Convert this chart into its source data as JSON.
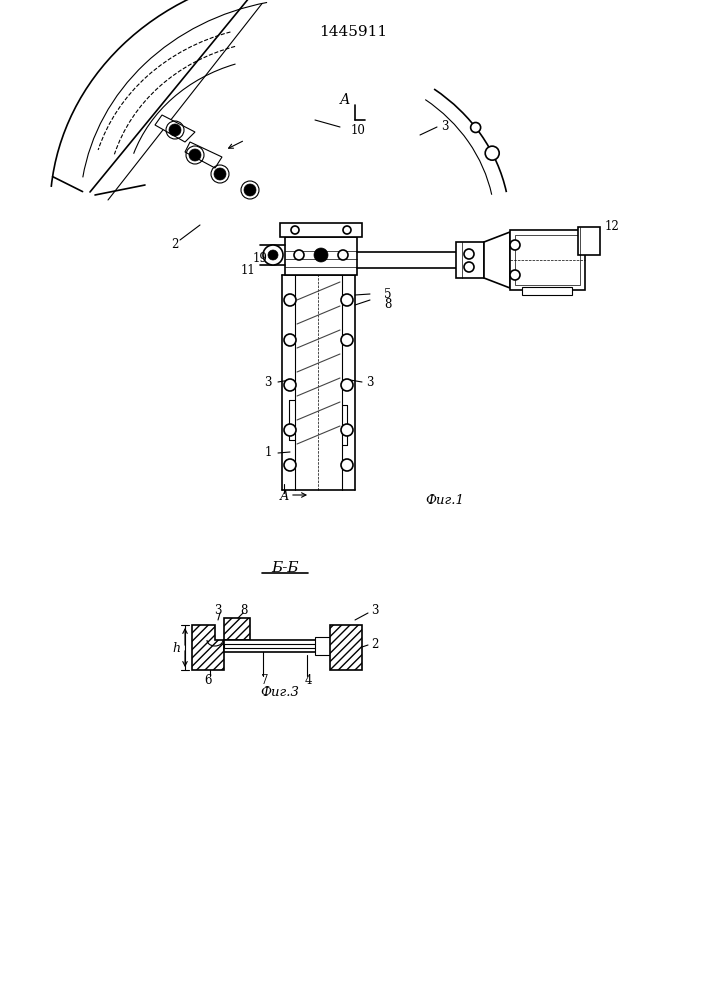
{
  "patent_number": "1445911",
  "fig1_label": "Фиг.1",
  "fig3_label": "Фиг.3",
  "section_bb": "Б-Б",
  "section_a": "А",
  "bg_color": "#ffffff",
  "line_color": "#000000",
  "fig_width": 7.07,
  "fig_height": 10.0,
  "dpi": 100
}
